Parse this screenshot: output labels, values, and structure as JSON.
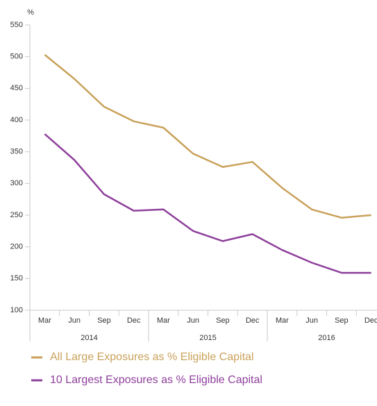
{
  "chart_data": {
    "type": "line",
    "y_label": "%",
    "categories": [
      "Mar",
      "Jun",
      "Sep",
      "Dec",
      "Mar",
      "Jun",
      "Sep",
      "Dec",
      "Mar",
      "Jun",
      "Sep",
      "Dec"
    ],
    "year_labels": [
      "2014",
      "2015",
      "2016"
    ],
    "series": [
      {
        "name": "All Large Exposures as % Eligible Capital",
        "color": "#c9a15a",
        "values": [
          503,
          465,
          421,
          398,
          388,
          347,
          326,
          334,
          293,
          259,
          246,
          250
        ]
      },
      {
        "name": "10 Largest Exposures as % Eligible Capital",
        "color": "#8e3f9b",
        "values": [
          378,
          337,
          283,
          257,
          259,
          225,
          209,
          220,
          195,
          175,
          159,
          159
        ]
      }
    ],
    "ylim": [
      100,
      550
    ],
    "yticks": [
      100,
      150,
      200,
      250,
      300,
      350,
      400,
      450,
      500,
      550
    ],
    "legend": "bottom"
  }
}
